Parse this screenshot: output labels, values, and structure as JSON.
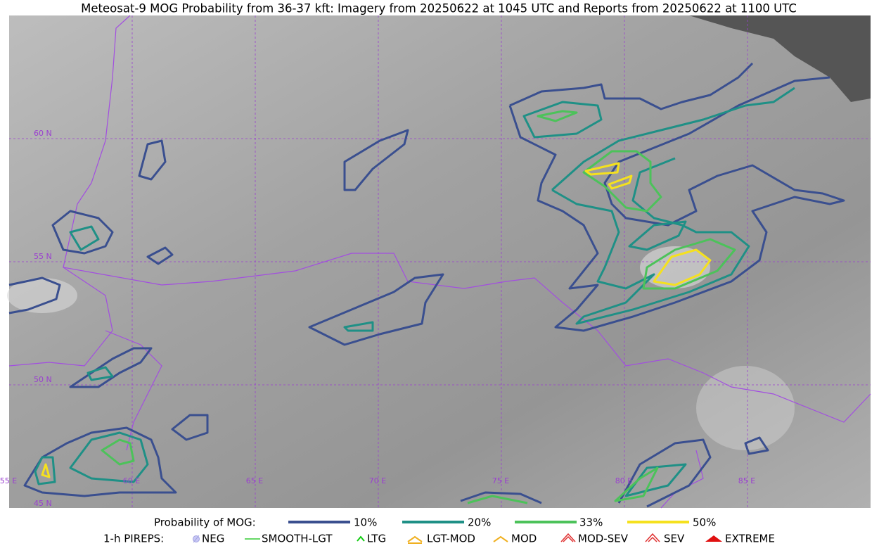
{
  "header": {
    "title": "Meteosat-9 MOG Probability from 36-37 kft: Imagery from 20250622 at 1045 UTC and Reports from 20250622 at 1100 UTC"
  },
  "map": {
    "latitudes": [
      "60 N",
      "55 N",
      "50 N",
      "45 N"
    ],
    "longitudes": [
      "55 E",
      "60 E",
      "65 E",
      "70 E",
      "75 E",
      "80 E",
      "85 E"
    ]
  },
  "legend": {
    "probability": {
      "label": "Probability of MOG:",
      "items": [
        "10%",
        "20%",
        "33%",
        "50%"
      ]
    },
    "pireps": {
      "label": "1-h PIREPS:",
      "items": [
        "NEG",
        "SMOOTH-LGT",
        "LTG",
        "LGT-MOD",
        "MOD",
        "MOD-SEV",
        "SEV",
        "EXTREME"
      ]
    }
  }
}
